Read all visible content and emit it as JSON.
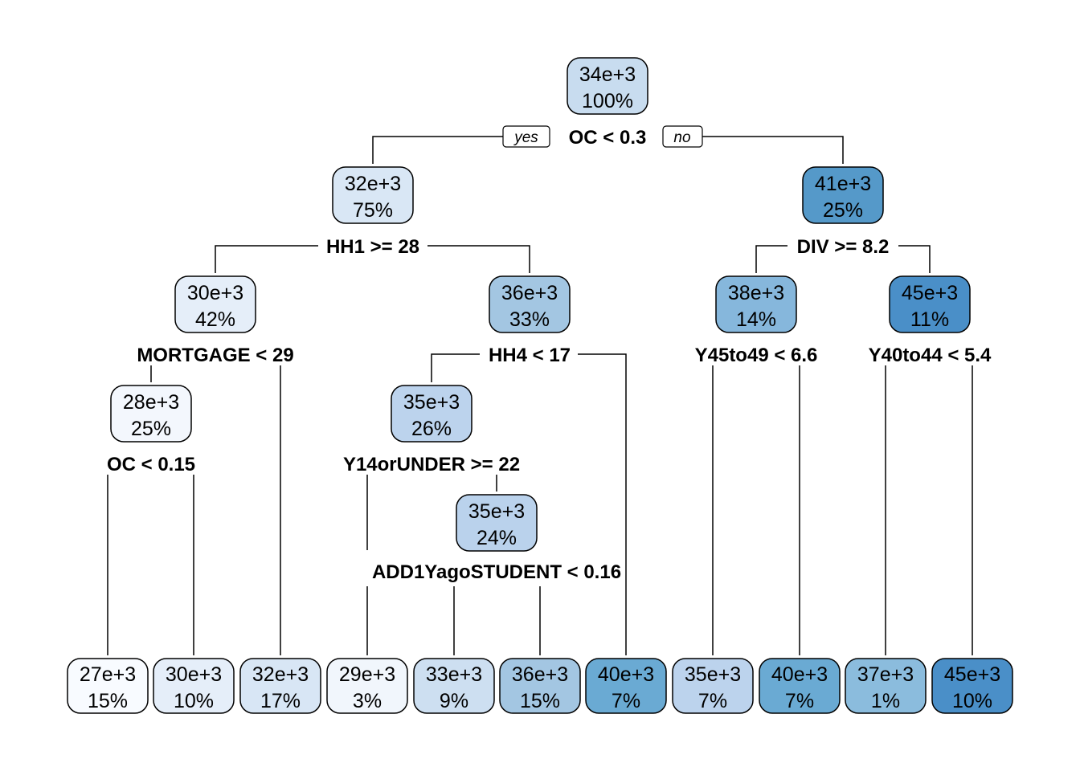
{
  "tree": {
    "nodes": [
      {
        "id": "root",
        "value": "34e+3",
        "pct": "100%",
        "fill": "#c8dcef"
      },
      {
        "id": "n2",
        "value": "32e+3",
        "pct": "75%",
        "fill": "#d9e7f5"
      },
      {
        "id": "n3",
        "value": "41e+3",
        "pct": "25%",
        "fill": "#5599c9"
      },
      {
        "id": "n4",
        "value": "30e+3",
        "pct": "42%",
        "fill": "#e5eef9"
      },
      {
        "id": "n5",
        "value": "36e+3",
        "pct": "33%",
        "fill": "#a3c6e2"
      },
      {
        "id": "n6",
        "value": "38e+3",
        "pct": "14%",
        "fill": "#86b7dc"
      },
      {
        "id": "n7",
        "value": "45e+3",
        "pct": "11%",
        "fill": "#4a8fc8"
      },
      {
        "id": "n8",
        "value": "28e+3",
        "pct": "25%",
        "fill": "#f3f7fd"
      },
      {
        "id": "n9",
        "value": "35e+3",
        "pct": "26%",
        "fill": "#bcd3ed"
      },
      {
        "id": "n10",
        "value": "35e+3",
        "pct": "24%",
        "fill": "#bad2ec"
      },
      {
        "id": "l1",
        "value": "27e+3",
        "pct": "15%",
        "fill": "#f8fbff"
      },
      {
        "id": "l2",
        "value": "30e+3",
        "pct": "10%",
        "fill": "#e5eef9"
      },
      {
        "id": "l3",
        "value": "32e+3",
        "pct": "17%",
        "fill": "#d8e6f5"
      },
      {
        "id": "l4",
        "value": "29e+3",
        "pct": "3%",
        "fill": "#f1f6fc"
      },
      {
        "id": "l5",
        "value": "33e+3",
        "pct": "9%",
        "fill": "#cddff1"
      },
      {
        "id": "l6",
        "value": "36e+3",
        "pct": "15%",
        "fill": "#a3c6e2"
      },
      {
        "id": "l7",
        "value": "40e+3",
        "pct": "7%",
        "fill": "#6aaad3"
      },
      {
        "id": "l8",
        "value": "35e+3",
        "pct": "7%",
        "fill": "#bcd3ed"
      },
      {
        "id": "l9",
        "value": "40e+3",
        "pct": "7%",
        "fill": "#6aaad3"
      },
      {
        "id": "l10",
        "value": "37e+3",
        "pct": "1%",
        "fill": "#8bbcdd"
      },
      {
        "id": "l11",
        "value": "45e+3",
        "pct": "10%",
        "fill": "#4a8fc8"
      }
    ],
    "splits": {
      "root": "OC < 0.3",
      "n2": "HH1 >= 28",
      "n3": "DIV >= 8.2",
      "n4": "MORTGAGE < 29",
      "n5": "HH4 < 17",
      "n6": "Y45to49 < 6.6",
      "n7": "Y40to44 < 5.4",
      "n8": "OC < 0.15",
      "n9": "Y14orUNDER >= 22",
      "n10": "ADD1YagoSTUDENT < 0.16"
    },
    "yes_label": "yes",
    "no_label": "no"
  }
}
